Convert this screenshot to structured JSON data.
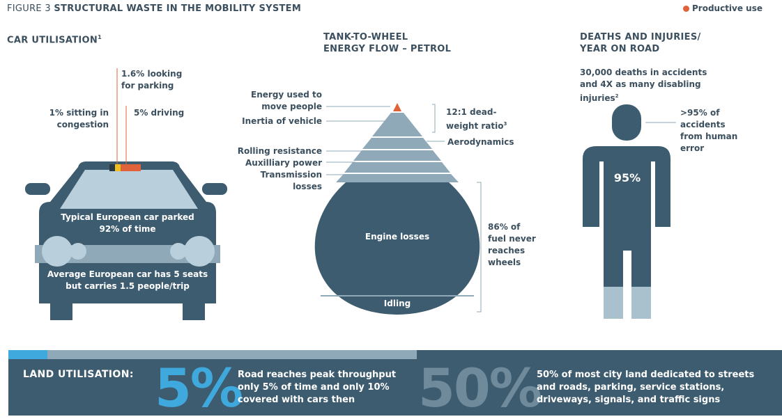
{
  "header": {
    "figure_label": "FIGURE 3",
    "title": "STRUCTURAL WASTE IN THE MOBILITY SYSTEM"
  },
  "legend": {
    "label": "Productive use",
    "color": "#e0623a"
  },
  "car_section": {
    "title": "CAR UTILISATION",
    "footnote": "1",
    "looking_parking": [
      "1.6% looking",
      "for parking"
    ],
    "congestion": [
      "1% sitting in",
      "congestion"
    ],
    "driving": "5% driving",
    "parked": [
      "Typical European car parked",
      "92% of time"
    ],
    "seats": [
      "Average European car has 5 seats",
      "but carries 1.5 people/trip"
    ]
  },
  "energy_section": {
    "title": [
      "TANK-TO-WHEEL",
      "ENERGY FLOW – PETROL"
    ],
    "energy_used": [
      "Energy used to",
      "move people"
    ],
    "inertia": "Inertia of vehicle",
    "rolling": "Rolling resistance",
    "auxiliary": "Auxilliary power",
    "transmission": [
      "Transmission",
      "losses"
    ],
    "deadweight": [
      "12:1 dead-",
      "weight ratio"
    ],
    "deadweight_footnote": "3",
    "aerodynamics": "Aerodynamics",
    "engine_losses": "Engine losses",
    "idling": "Idling",
    "fuel_loss": [
      "86% of",
      "fuel never",
      "reaches",
      "wheels"
    ]
  },
  "deaths_section": {
    "title": [
      "DEATHS AND INJURIES/",
      "YEAR ON ROAD"
    ],
    "deaths": [
      "30,000 deaths in accidents",
      "and 4X as many disabling",
      "injuries"
    ],
    "deaths_footnote": "2",
    "human_error": [
      ">95% of",
      "accidents",
      "from human",
      "error"
    ],
    "percent": "95%",
    "human_error_fraction": 0.95
  },
  "land_section": {
    "label": "LAND UTILISATION:",
    "stat1": "5%",
    "stat1_text": [
      "Road reaches peak throughput",
      "only 5% of time and only 10%",
      "covered with cars then"
    ],
    "stat2": "50%",
    "stat2_text": [
      "50% of most city land dedicated to streets",
      "and roads, parking, service stations,",
      "driveways, signals, and traffic signs"
    ]
  }
}
